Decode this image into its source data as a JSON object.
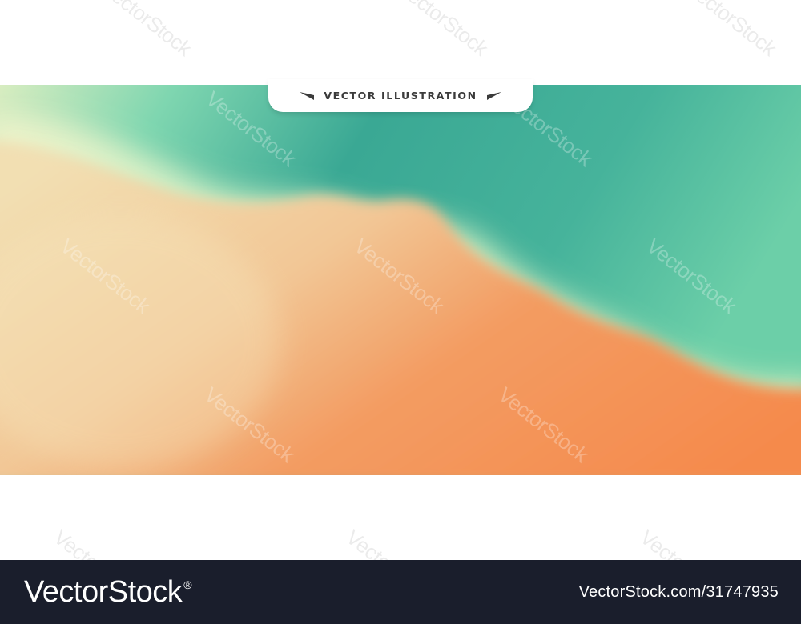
{
  "title_tab": {
    "label": "VECTOR ILLUSTRATION"
  },
  "watermark": {
    "text": "VectorStock"
  },
  "footer": {
    "brand": "VectorStock",
    "registered_mark": "®",
    "image_id": "VectorStock.com/31747935"
  },
  "colors": {
    "teal": "#3aa894",
    "mint": "#8fe0b8",
    "pale_cream": "#f0f0c0",
    "sand": "#f2cd9c",
    "orange": "#f58a4c",
    "footer_bg": "#1a1e2c"
  }
}
